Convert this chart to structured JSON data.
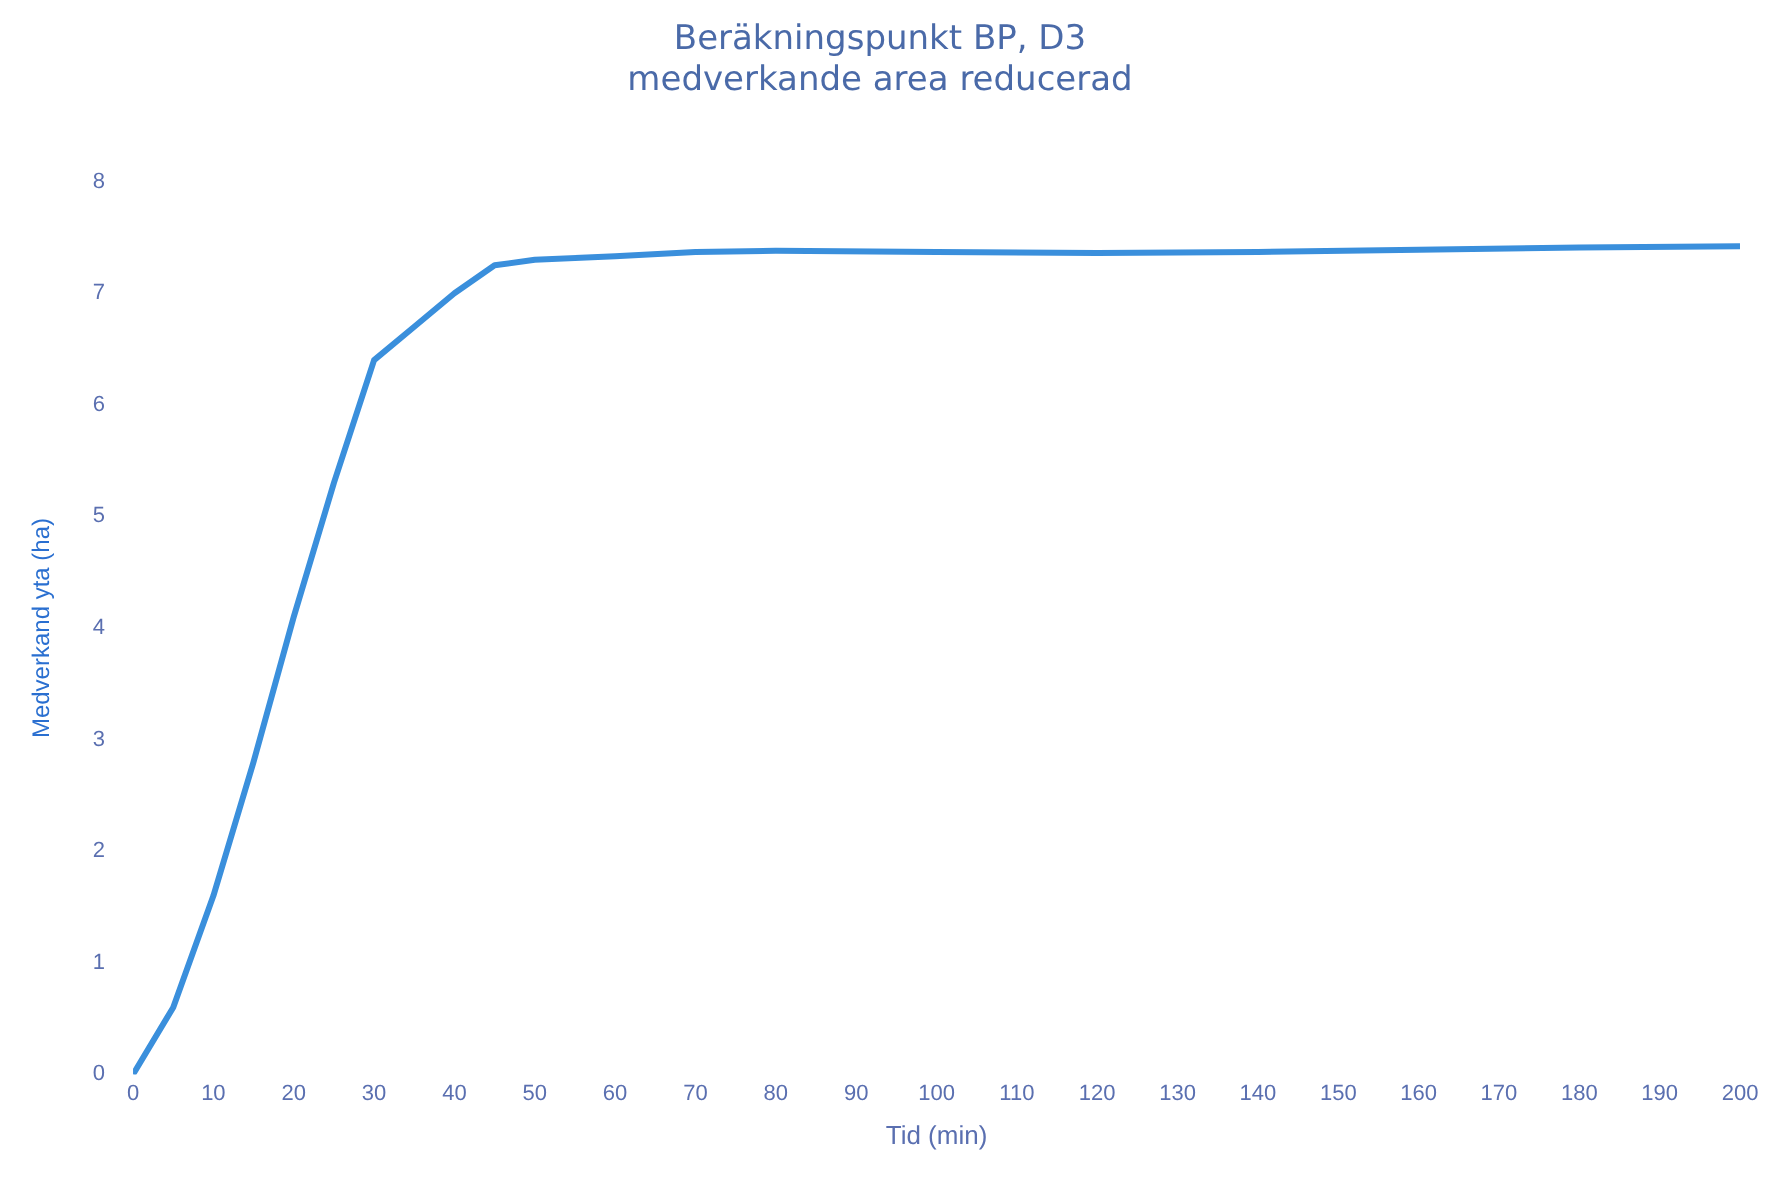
{
  "chart_data": {
    "type": "line",
    "title": "Beräkningspunkt BP, D3\nmedverkande area reducerad",
    "xlabel": "Tid (min)",
    "ylabel": "Medverkand yta (ha)",
    "x": [
      0,
      5,
      10,
      15,
      20,
      25,
      30,
      35,
      40,
      45,
      50,
      60,
      70,
      80,
      100,
      120,
      140,
      160,
      180,
      200
    ],
    "series": [
      {
        "color": "#3a8fdc",
        "values": [
          0,
          0.6,
          1.6,
          2.8,
          4.1,
          5.3,
          6.4,
          6.7,
          7,
          7.25,
          7.3,
          7.33,
          7.37,
          7.38,
          7.37,
          7.36,
          7.37,
          7.39,
          7.41,
          7.42
        ]
      }
    ],
    "xlim": [
      0,
      200
    ],
    "xticks": [
      0,
      10,
      20,
      30,
      40,
      50,
      60,
      70,
      80,
      90,
      100,
      110,
      120,
      130,
      140,
      150,
      160,
      170,
      180,
      190,
      200
    ],
    "ylim": [
      0,
      8
    ],
    "yticks": [
      0,
      1,
      2,
      3,
      4,
      5,
      6,
      7,
      8
    ],
    "grid": false,
    "legend": false,
    "marker": "none",
    "line_style": "solid"
  }
}
